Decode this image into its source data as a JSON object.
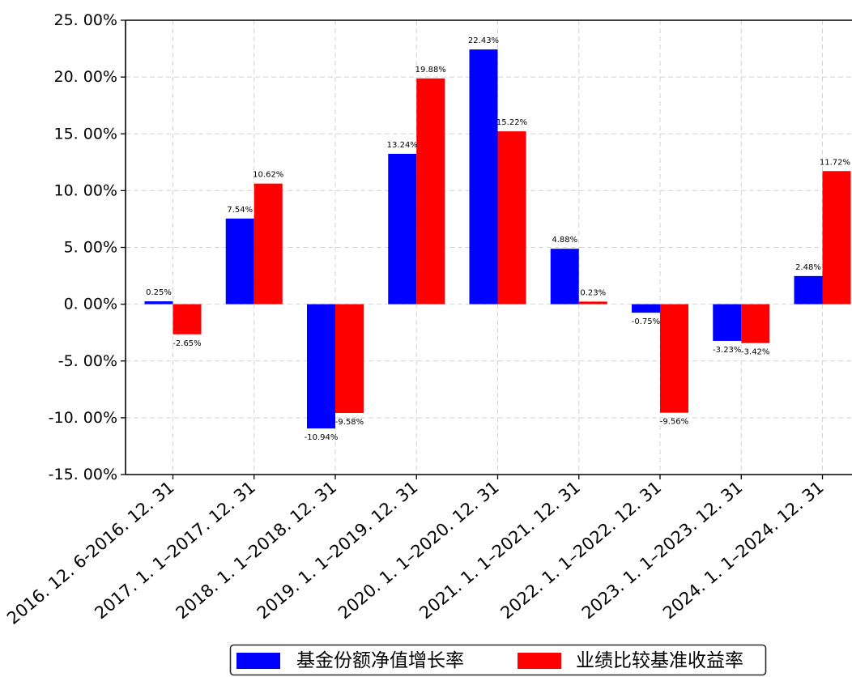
{
  "chart_data": {
    "type": "bar",
    "categories": [
      "2016. 12. 6-2016. 12. 31",
      "2017. 1. 1–2017. 12. 31",
      "2018. 1. 1–2018. 12. 31",
      "2019. 1. 1–2019. 12. 31",
      "2020. 1. 1–2020. 12. 31",
      "2021. 1. 1–2021. 12. 31",
      "2022. 1. 1–2022. 12. 31",
      "2023. 1. 1–2023. 12. 31",
      "2024. 1. 1–2024. 12. 31"
    ],
    "series": [
      {
        "name": "基金份额净值增长率",
        "color": "#0000ff",
        "values": [
          0.25,
          7.54,
          -10.94,
          13.24,
          22.43,
          4.88,
          -0.75,
          -3.23,
          2.48
        ],
        "data_labels": [
          "0.25%",
          "7.54%",
          "-10.94%",
          "13.24%",
          "22.43%",
          "4.88%",
          "-0.75%",
          "-3.23%",
          "2.48%"
        ]
      },
      {
        "name": "业绩比较基准收益率",
        "color": "#ff0000",
        "values": [
          -2.65,
          10.62,
          -9.58,
          19.88,
          15.22,
          0.23,
          -9.56,
          -3.42,
          11.72
        ],
        "data_labels": [
          "-2.65%",
          "10.62%",
          "-9.58%",
          "19.88%",
          "15.22%",
          "0.23%",
          "-9.56%",
          "-3.42%",
          "11.72%"
        ]
      }
    ],
    "ylim": [
      -15,
      25
    ],
    "yticks": [
      25,
      20,
      15,
      10,
      5,
      0,
      -5,
      -10,
      -15
    ],
    "ytick_labels": [
      "25. 00%",
      "20. 00%",
      "15. 00%",
      "10. 00%",
      "5. 00%",
      "0. 00%",
      "-5. 00%",
      "-10. 00%",
      "-15. 00%"
    ],
    "grid": true,
    "legend": "bottom-center"
  }
}
